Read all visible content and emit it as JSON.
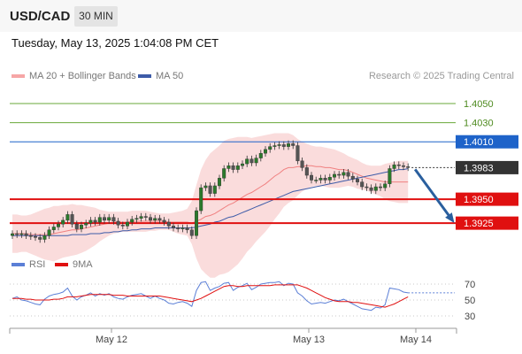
{
  "header": {
    "symbol": "USD/CAD",
    "timeframe": "30 MIN"
  },
  "datetime": "Tuesday, May 13, 2025 1:04:08 PM CET",
  "legend": {
    "bb_label": "MA 20 + Bollinger Bands",
    "ma50_label": "MA 50"
  },
  "credit": "Research © 2025 Trading Central",
  "colors": {
    "bb_fill": "#f9d6d6",
    "ma20": "#f08080",
    "ma50": "#3d5ba8",
    "resistance": "#6aa83a",
    "pivot_line": "#1e63c9",
    "support": "#e01010",
    "candle": "#2b7a2b",
    "current_label": "#333333",
    "arrow": "#2a5f9e",
    "rsi": "#5b7fd6",
    "rsi_ma": "#e01010"
  },
  "indicator_legend": {
    "rsi_label": "RSI",
    "ma_label": "9MA"
  },
  "chart_data": [
    {
      "type": "candlestick",
      "ylim": [
        1.3902,
        1.4074
      ],
      "levels": [
        {
          "value": 1.405,
          "label": "1.4050",
          "kind": "resistance"
        },
        {
          "value": 1.403,
          "label": "1.4030",
          "kind": "resistance"
        },
        {
          "value": 1.401,
          "label": "1.4010",
          "kind": "pivot"
        },
        {
          "value": 1.3983,
          "label": "1.3983",
          "kind": "current"
        },
        {
          "value": 1.395,
          "label": "1.3950",
          "kind": "support"
        },
        {
          "value": 1.3925,
          "label": "1.3925",
          "kind": "support"
        }
      ],
      "x_ticks": [
        "May 12",
        "May 13",
        "May 14"
      ],
      "close": [
        1.3914,
        1.3913,
        1.3914,
        1.3912,
        1.3911,
        1.391,
        1.3908,
        1.3912,
        1.3918,
        1.3921,
        1.3924,
        1.3928,
        1.3934,
        1.3924,
        1.3919,
        1.3923,
        1.3925,
        1.3928,
        1.3926,
        1.3931,
        1.3928,
        1.3931,
        1.3927,
        1.3923,
        1.3922,
        1.3926,
        1.3929,
        1.393,
        1.3932,
        1.3931,
        1.3928,
        1.393,
        1.3928,
        1.3926,
        1.3922,
        1.392,
        1.3919,
        1.392,
        1.3918,
        1.3912,
        1.3938,
        1.3962,
        1.3964,
        1.3956,
        1.3964,
        1.3972,
        1.3982,
        1.3985,
        1.3981,
        1.3985,
        1.3987,
        1.3992,
        1.3988,
        1.3993,
        1.3998,
        1.4002,
        1.4005,
        1.4006,
        1.4007,
        1.4005,
        1.4008,
        1.4006,
        1.399,
        1.3983,
        1.3975,
        1.397,
        1.397,
        1.3972,
        1.397,
        1.3973,
        1.3976,
        1.3975,
        1.3978,
        1.3974,
        1.3971,
        1.3968,
        1.3963,
        1.3962,
        1.3959,
        1.3963,
        1.3962,
        1.3966,
        1.3982,
        1.3986,
        1.3985,
        1.3984,
        1.3983
      ],
      "bb_upper": [
        1.3934,
        1.3934,
        1.3933,
        1.3933,
        1.3934,
        1.3936,
        1.3938,
        1.394,
        1.3941,
        1.3943,
        1.3943,
        1.3944,
        1.3944,
        1.3945,
        1.3944,
        1.3944,
        1.3943,
        1.3942,
        1.3941,
        1.3939,
        1.3938,
        1.3937,
        1.3937,
        1.3937,
        1.3937,
        1.3937,
        1.3938,
        1.3938,
        1.3938,
        1.3938,
        1.3937,
        1.3936,
        1.3935,
        1.3935,
        1.3935,
        1.3936,
        1.3937,
        1.3938,
        1.394,
        1.3948,
        1.3965,
        1.3981,
        1.3991,
        1.3998,
        1.4002,
        1.4006,
        1.4011,
        1.4013,
        1.4014,
        1.4015,
        1.4015,
        1.4015,
        1.4014,
        1.4015,
        1.4016,
        1.4017,
        1.4018,
        1.4019,
        1.4019,
        1.4019,
        1.4019,
        1.4017,
        1.4013,
        1.401,
        1.4008,
        1.4006,
        1.4005,
        1.4005,
        1.4004,
        1.4003,
        1.4002,
        1.4,
        1.3998,
        1.3995,
        1.3993,
        1.3991,
        1.3988,
        1.3986,
        1.3985,
        1.3985,
        1.3985,
        1.3987,
        1.3988,
        1.3989,
        1.399,
        1.399,
        1.399
      ],
      "ma20": [
        1.3914,
        1.3914,
        1.3914,
        1.3914,
        1.3913,
        1.3913,
        1.3913,
        1.3913,
        1.3913,
        1.3914,
        1.3915,
        1.3916,
        1.3917,
        1.3918,
        1.3918,
        1.3919,
        1.392,
        1.3921,
        1.3922,
        1.3923,
        1.3924,
        1.3925,
        1.3926,
        1.3926,
        1.3926,
        1.3926,
        1.3927,
        1.3927,
        1.3927,
        1.3927,
        1.3927,
        1.3927,
        1.3927,
        1.3927,
        1.3926,
        1.3926,
        1.3926,
        1.3926,
        1.3926,
        1.3925,
        1.3927,
        1.3929,
        1.3932,
        1.3933,
        1.3935,
        1.3938,
        1.3941,
        1.3944,
        1.3946,
        1.3949,
        1.3952,
        1.3955,
        1.3957,
        1.396,
        1.3963,
        1.3966,
        1.397,
        1.3974,
        1.3977,
        1.3981,
        1.3983,
        1.3983,
        1.3984,
        1.3984,
        1.3985,
        1.3985,
        1.3984,
        1.3984,
        1.3983,
        1.3983,
        1.3982,
        1.3981,
        1.3981,
        1.398,
        1.3978,
        1.3976,
        1.3974,
        1.3972,
        1.3971,
        1.397,
        1.3969,
        1.3968,
        1.3968,
        1.3968,
        1.3968,
        1.3968,
        1.3968
      ],
      "bb_lower": [
        1.3894,
        1.3894,
        1.3895,
        1.3895,
        1.3893,
        1.3891,
        1.3889,
        1.3887,
        1.3886,
        1.3885,
        1.3887,
        1.3889,
        1.389,
        1.3891,
        1.3892,
        1.3894,
        1.3896,
        1.3899,
        1.3902,
        1.3906,
        1.3909,
        1.3912,
        1.3914,
        1.3915,
        1.3916,
        1.3916,
        1.3916,
        1.3916,
        1.3916,
        1.3916,
        1.3917,
        1.3917,
        1.3918,
        1.3918,
        1.3918,
        1.3916,
        1.3914,
        1.3913,
        1.3912,
        1.3903,
        1.3888,
        1.3877,
        1.3872,
        1.3868,
        1.3868,
        1.3871,
        1.3872,
        1.3874,
        1.3878,
        1.3882,
        1.3888,
        1.3895,
        1.39,
        1.3906,
        1.3911,
        1.3916,
        1.3922,
        1.3929,
        1.3935,
        1.3942,
        1.3946,
        1.3949,
        1.3954,
        1.3958,
        1.3961,
        1.3963,
        1.3964,
        1.3964,
        1.3963,
        1.3962,
        1.3962,
        1.3962,
        1.3963,
        1.3964,
        1.3963,
        1.3961,
        1.396,
        1.3959,
        1.3957,
        1.3955,
        1.3953,
        1.395,
        1.3948,
        1.3947,
        1.3946,
        1.3946,
        1.3946
      ],
      "ma50": [
        1.3912,
        1.3912,
        1.3912,
        1.3912,
        1.3912,
        1.3912,
        1.3912,
        1.3912,
        1.3912,
        1.3912,
        1.3912,
        1.3912,
        1.3912,
        1.3913,
        1.3913,
        1.3913,
        1.3913,
        1.3914,
        1.3914,
        1.3914,
        1.3915,
        1.3915,
        1.3916,
        1.3916,
        1.3917,
        1.3917,
        1.3918,
        1.3918,
        1.3919,
        1.3919,
        1.3919,
        1.392,
        1.392,
        1.392,
        1.392,
        1.392,
        1.392,
        1.392,
        1.392,
        1.392,
        1.3921,
        1.3922,
        1.3923,
        1.3924,
        1.3926,
        1.3927,
        1.3929,
        1.3931,
        1.3932,
        1.3934,
        1.3936,
        1.3938,
        1.394,
        1.3942,
        1.3944,
        1.3946,
        1.3948,
        1.395,
        1.3952,
        1.3954,
        1.3956,
        1.3958,
        1.3959,
        1.396,
        1.3961,
        1.3962,
        1.3963,
        1.3964,
        1.3965,
        1.3966,
        1.3967,
        1.3968,
        1.3969,
        1.397,
        1.3971,
        1.3972,
        1.3973,
        1.3974,
        1.3975,
        1.3976,
        1.3977,
        1.3978,
        1.3979,
        1.398,
        1.3981,
        1.3981,
        1.3982
      ],
      "projection": {
        "from": 1.3983,
        "to": 1.3925
      }
    },
    {
      "type": "line",
      "name": "RSI panel",
      "y_ticks": [
        70,
        50,
        30
      ],
      "ylim": [
        20,
        80
      ],
      "series": [
        {
          "name": "RSI",
          "values": [
            52,
            54,
            50,
            49,
            47,
            45,
            44,
            51,
            55,
            57,
            58,
            60,
            65,
            55,
            50,
            54,
            56,
            59,
            55,
            58,
            56,
            58,
            54,
            52,
            51,
            54,
            56,
            57,
            58,
            55,
            52,
            55,
            52,
            50,
            46,
            45,
            47,
            48,
            46,
            42,
            62,
            72,
            73,
            62,
            65,
            67,
            71,
            72,
            62,
            66,
            68,
            71,
            63,
            66,
            70,
            71,
            72,
            72,
            73,
            68,
            71,
            70,
            59,
            55,
            49,
            45,
            46,
            47,
            46,
            48,
            50,
            49,
            51,
            48,
            45,
            42,
            39,
            38,
            37,
            41,
            40,
            44,
            65,
            64,
            63,
            60,
            59
          ]
        },
        {
          "name": "9MA",
          "values": [
            52,
            52,
            52,
            51,
            51,
            50,
            50,
            50,
            50,
            51,
            51,
            52,
            54,
            54,
            54,
            55,
            56,
            57,
            57,
            57,
            57,
            57,
            56,
            56,
            56,
            55,
            55,
            55,
            55,
            55,
            55,
            55,
            55,
            54,
            53,
            52,
            51,
            50,
            49,
            48,
            50,
            52,
            55,
            58,
            61,
            64,
            67,
            68,
            68,
            67,
            67,
            68,
            68,
            68,
            68,
            68,
            68,
            69,
            69,
            69,
            69,
            69,
            69,
            67,
            65,
            62,
            59,
            56,
            53,
            51,
            49,
            48,
            48,
            48,
            47,
            47,
            46,
            45,
            44,
            43,
            42,
            41,
            43,
            45,
            48,
            51,
            54
          ]
        }
      ]
    }
  ]
}
